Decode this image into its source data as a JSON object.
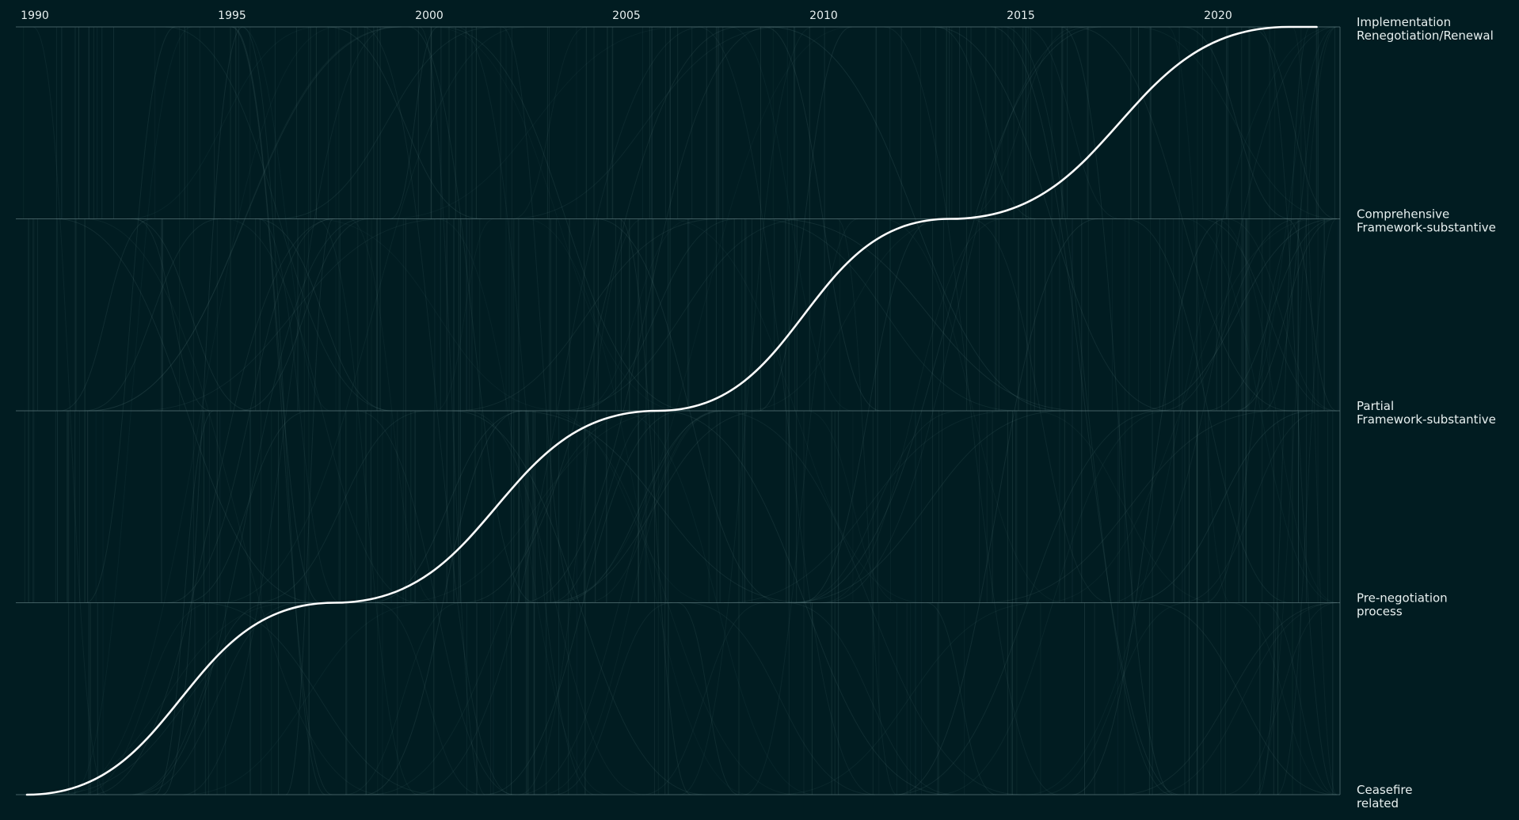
{
  "chart_data": {
    "type": "line",
    "title": "",
    "xlabel": "",
    "ylabel": "",
    "xlim": [
      1990,
      2023.5
    ],
    "x_ticks": [
      "1990",
      "1995",
      "2000",
      "2005",
      "2010",
      "2015",
      "2020"
    ],
    "x_tick_values": [
      1990,
      1995,
      2000,
      2005,
      2010,
      2015,
      2020
    ],
    "stages": [
      {
        "lines": [
          "Ceasefire",
          "related"
        ]
      },
      {
        "lines": [
          "Pre-negotiation",
          "process"
        ]
      },
      {
        "lines": [
          "Partial",
          "Framework-substantive"
        ]
      },
      {
        "lines": [
          "Comprehensive",
          "Framework-substantive"
        ]
      },
      {
        "lines": [
          "Implementation",
          "Renegotiation/Renewal"
        ]
      }
    ],
    "highlight_series": {
      "points": [
        {
          "x": 1989.8,
          "stage": 0
        },
        {
          "x": 1997.6,
          "stage": 1
        },
        {
          "x": 2005.8,
          "stage": 2
        },
        {
          "x": 2013.2,
          "stage": 3
        },
        {
          "x": 2021.8,
          "stage": 4
        },
        {
          "x": 2022.5,
          "stage": 4
        }
      ],
      "color": "#ffffff"
    },
    "background_series_color": "#8fb3b3",
    "gridline_color": "#5e7b7f",
    "grid": true
  }
}
